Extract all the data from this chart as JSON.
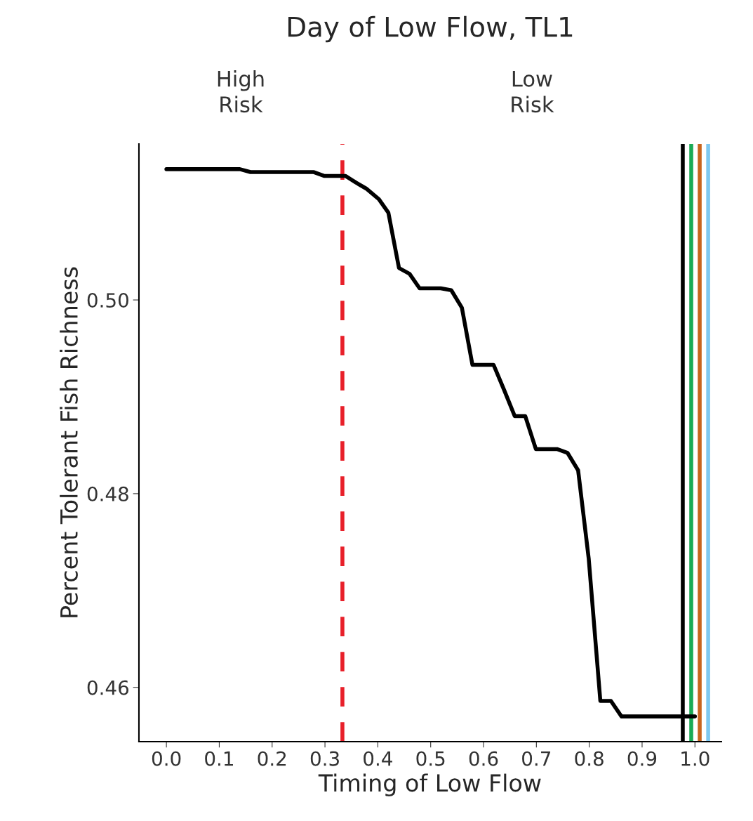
{
  "chart_data": {
    "type": "line",
    "title": "Day of Low Flow, TL1",
    "xlabel": "Timing of Low Flow",
    "ylabel": "Percent Tolerant Fish Richness",
    "x": [
      0.0,
      0.139,
      0.159,
      0.279,
      0.299,
      0.339,
      0.359,
      0.378,
      0.402,
      0.42,
      0.44,
      0.46,
      0.479,
      0.519,
      0.539,
      0.559,
      0.579,
      0.619,
      0.639,
      0.659,
      0.679,
      0.699,
      0.739,
      0.759,
      0.779,
      0.799,
      0.821,
      0.841,
      0.861,
      1.0
    ],
    "series": [
      {
        "color": "#000000",
        "values": [
          0.5135,
          0.5135,
          0.5132,
          0.5132,
          0.5128,
          0.5128,
          0.5121,
          0.5115,
          0.5104,
          0.509,
          0.5033,
          0.5027,
          0.5012,
          0.5012,
          0.501,
          0.4992,
          0.4933,
          0.4933,
          0.4907,
          0.488,
          0.488,
          0.4846,
          0.4846,
          0.4842,
          0.4824,
          0.4733,
          0.4586,
          0.4586,
          0.457,
          0.457
        ]
      }
    ],
    "ref_lines": [
      {
        "axis": "x",
        "value": 0.333,
        "color": "#e8202a",
        "line_style": "dashed"
      },
      {
        "axis": "x",
        "value": 0.977,
        "color": "#000000",
        "line_style": "solid"
      },
      {
        "axis": "x",
        "value": 0.993,
        "color": "#1aaa55",
        "line_style": "solid"
      },
      {
        "axis": "x",
        "value": 1.009,
        "color": "#c8641e",
        "line_style": "solid"
      },
      {
        "axis": "x",
        "value": 1.025,
        "color": "#7ec8f0",
        "line_style": "solid"
      }
    ],
    "annotations": [
      "High\nRisk",
      "Low\nRisk"
    ],
    "xlim": [
      -0.052,
      1.05
    ],
    "ylim": [
      0.4544,
      0.5161
    ],
    "xticks": [
      {
        "value": 0.0,
        "label": "0.0"
      },
      0.1,
      0.2,
      0.3,
      0.4,
      0.5,
      0.6,
      0.7,
      0.8,
      0.9,
      {
        "value": 1.0,
        "label": "1.0"
      }
    ],
    "yticks": [
      {
        "value": 0.46,
        "label": "0.46"
      },
      {
        "value": 0.48,
        "label": "0.48"
      },
      {
        "value": 0.5,
        "label": "0.50"
      }
    ],
    "grid": false,
    "legend": false,
    "marker": "none",
    "line_style": "solid"
  }
}
